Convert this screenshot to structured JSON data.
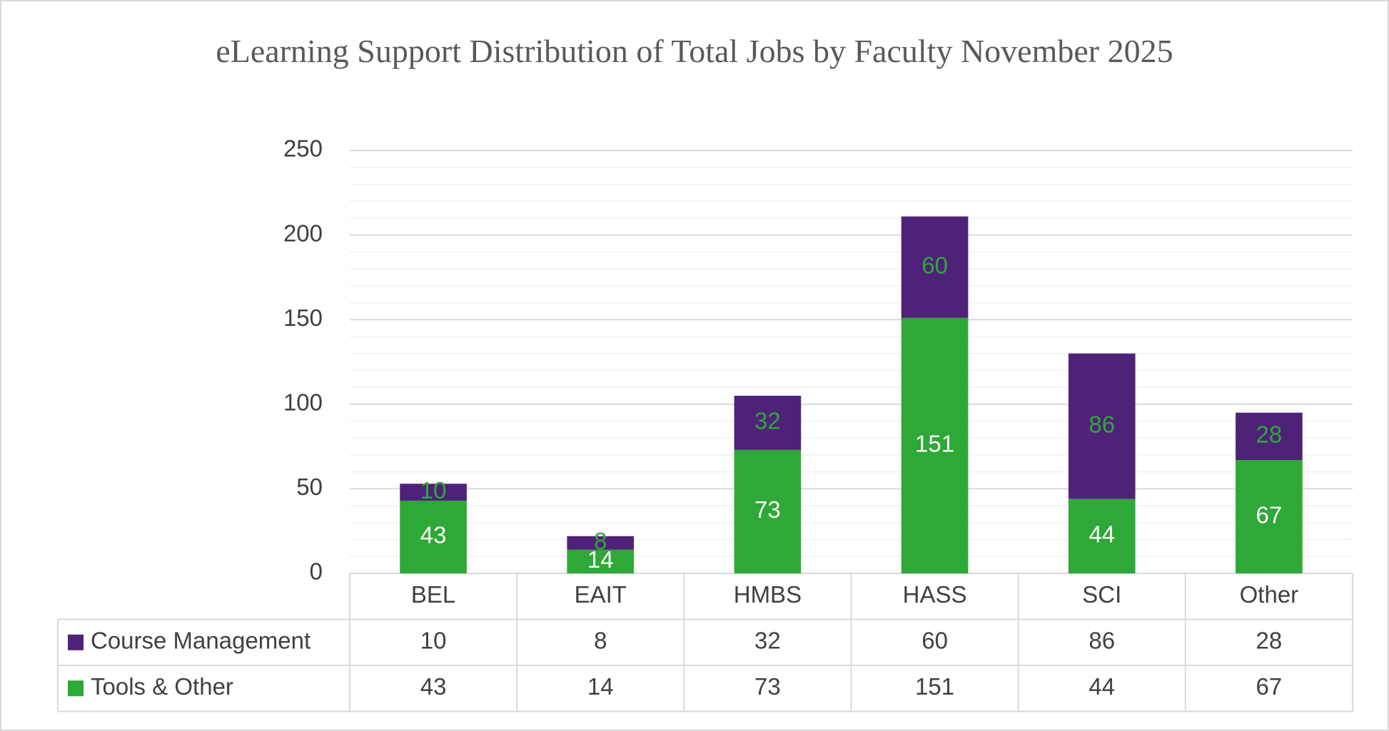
{
  "chart_data": {
    "type": "stacked_bar_table",
    "title": "eLearning Support Distribution of Total Jobs by Faculty November 2025",
    "categories": [
      "BEL",
      "EAIT",
      "HMBS",
      "HASS",
      "SCI",
      "Other"
    ],
    "series": [
      {
        "name": "Course Management",
        "color": "#4f2279",
        "label_color": "#2ea836",
        "values": [
          10,
          8,
          32,
          60,
          86,
          28
        ]
      },
      {
        "name": "Tools & Other",
        "color": "#2ea836",
        "label_color": "#ffffff",
        "values": [
          43,
          14,
          73,
          151,
          44,
          67
        ]
      }
    ],
    "ylim": [
      0,
      250
    ],
    "yticks": [
      0,
      50,
      100,
      150,
      200,
      250
    ],
    "minor_yticks": [
      10,
      20,
      30,
      40,
      60,
      70,
      80,
      90,
      110,
      120,
      130,
      140,
      160,
      170,
      180,
      190,
      210,
      220,
      230,
      240
    ],
    "grid": true
  }
}
